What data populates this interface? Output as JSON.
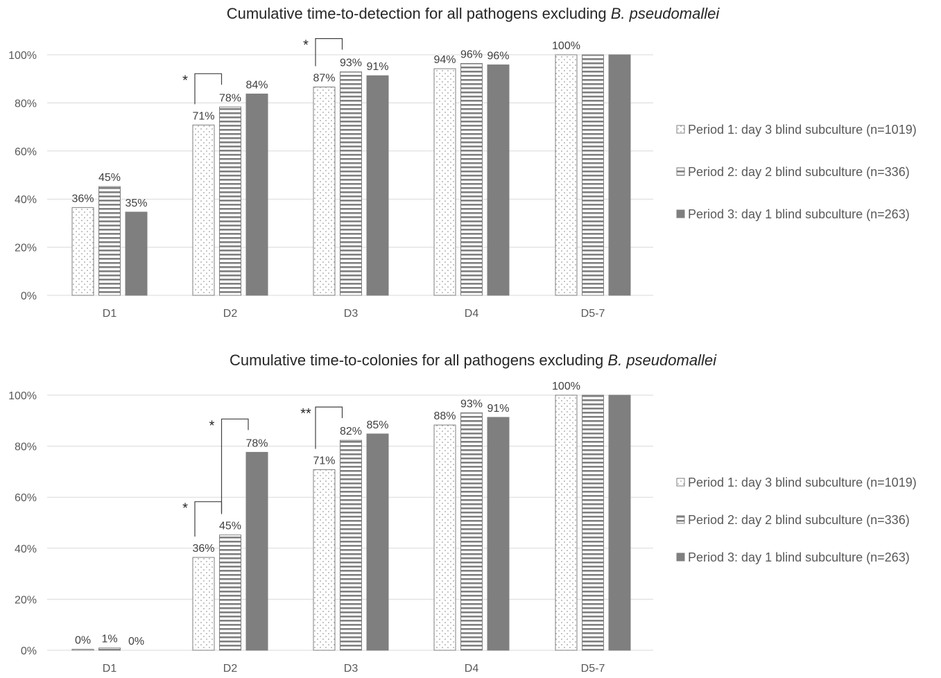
{
  "chart_data": [
    {
      "type": "bar",
      "title": "Cumulative time-to-detection for all pathogens excluding",
      "title_italic": "B. pseudomallei",
      "categories": [
        "D1",
        "D2",
        "D3",
        "D4",
        "D5-7"
      ],
      "ylim": [
        0,
        100
      ],
      "yticks": [
        "0%",
        "20%",
        "40%",
        "60%",
        "80%",
        "100%"
      ],
      "grid": true,
      "legend_position": "right",
      "series": [
        {
          "name": "Period 1: day 3 blind subculture (n=1019)",
          "pattern": "dots",
          "values": [
            36.5,
            70.8,
            86.6,
            94.2,
            100
          ],
          "labels": [
            "36%",
            "71%",
            "87%",
            "94%",
            "100%"
          ]
        },
        {
          "name": "Period 2: day 2 blind subculture (n=336)",
          "pattern": "stripes",
          "values": [
            45.2,
            78.3,
            92.9,
            96.4,
            100
          ],
          "labels": [
            "45%",
            "78%",
            "93%",
            "96%",
            ""
          ]
        },
        {
          "name": "Period 3: day 1 blind subculture (n=263)",
          "pattern": "solid",
          "values": [
            34.6,
            83.7,
            91.3,
            95.8,
            100
          ],
          "labels": [
            "35%",
            "84%",
            "91%",
            "96%",
            ""
          ]
        }
      ],
      "annotations": [
        {
          "text": "*",
          "category": 1,
          "series": [
            0,
            1
          ]
        },
        {
          "text": "*",
          "category": 2,
          "series": [
            0,
            1
          ]
        }
      ]
    },
    {
      "type": "bar",
      "title": "Cumulative time-to-colonies for all pathogens excluding",
      "title_italic": "B. pseudomallei",
      "categories": [
        "D1",
        "D2",
        "D3",
        "D4",
        "D5-7"
      ],
      "ylim": [
        0,
        100
      ],
      "yticks": [
        "0%",
        "20%",
        "40%",
        "60%",
        "80%",
        "100%"
      ],
      "grid": true,
      "legend_position": "right",
      "series": [
        {
          "name": "Period 1: day 3 blind subculture (n=1019)",
          "pattern": "dots",
          "values": [
            0.4,
            36.4,
            70.8,
            88.3,
            100
          ],
          "labels": [
            "0%",
            "36%",
            "71%",
            "88%",
            "100%"
          ]
        },
        {
          "name": "Period 2: day 2 blind subculture (n=336)",
          "pattern": "stripes",
          "values": [
            0.9,
            45.2,
            82.3,
            93.1,
            100
          ],
          "labels": [
            "1%",
            "45%",
            "82%",
            "93%",
            ""
          ]
        },
        {
          "name": "Period 3: day 1 blind subculture (n=263)",
          "pattern": "solid",
          "values": [
            0,
            77.6,
            84.8,
            91.3,
            100
          ],
          "labels": [
            "0%",
            "78%",
            "85%",
            "91%",
            ""
          ]
        }
      ],
      "annotations": [
        {
          "text": "*",
          "category": 1,
          "series": [
            0,
            1
          ]
        },
        {
          "text": "*",
          "category": 1,
          "series": [
            1,
            2
          ]
        },
        {
          "text": "**",
          "category": 2,
          "series": [
            0,
            1
          ]
        }
      ]
    }
  ],
  "colors": {
    "grid": "#d9d9d9",
    "bar_outline": "#7f7f7f",
    "solid_fill": "#7f7f7f",
    "text": "#404040"
  }
}
